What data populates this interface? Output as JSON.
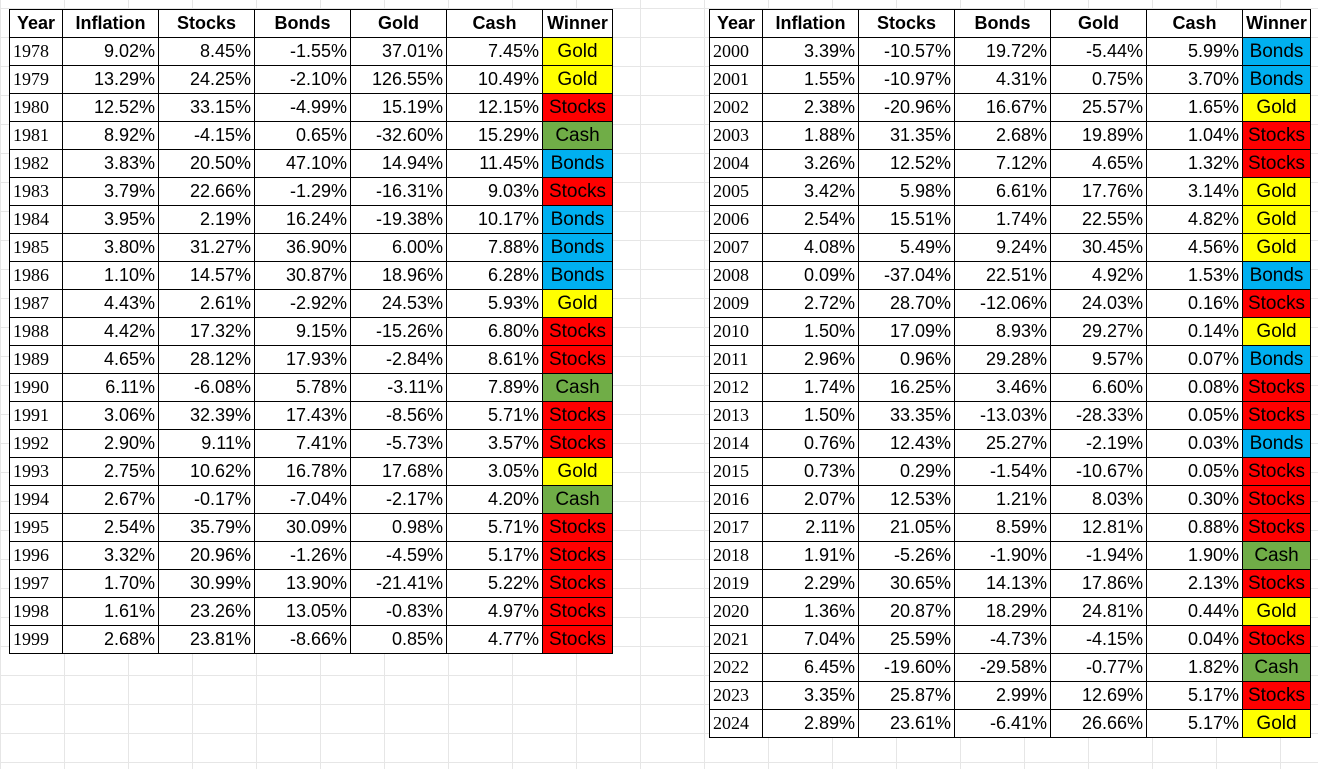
{
  "headers": [
    "Year",
    "Inflation",
    "Stocks",
    "Bonds",
    "Gold",
    "Cash",
    "Winner"
  ],
  "colors": {
    "Gold": "#ffff00",
    "Stocks": "#ff0000",
    "Bonds": "#00b0f0",
    "Cash": "#70ad47"
  },
  "left_table": [
    [
      "1978",
      "9.02%",
      "8.45%",
      "-1.55%",
      "37.01%",
      "7.45%",
      "Gold"
    ],
    [
      "1979",
      "13.29%",
      "24.25%",
      "-2.10%",
      "126.55%",
      "10.49%",
      "Gold"
    ],
    [
      "1980",
      "12.52%",
      "33.15%",
      "-4.99%",
      "15.19%",
      "12.15%",
      "Stocks"
    ],
    [
      "1981",
      "8.92%",
      "-4.15%",
      "0.65%",
      "-32.60%",
      "15.29%",
      "Cash"
    ],
    [
      "1982",
      "3.83%",
      "20.50%",
      "47.10%",
      "14.94%",
      "11.45%",
      "Bonds"
    ],
    [
      "1983",
      "3.79%",
      "22.66%",
      "-1.29%",
      "-16.31%",
      "9.03%",
      "Stocks"
    ],
    [
      "1984",
      "3.95%",
      "2.19%",
      "16.24%",
      "-19.38%",
      "10.17%",
      "Bonds"
    ],
    [
      "1985",
      "3.80%",
      "31.27%",
      "36.90%",
      "6.00%",
      "7.88%",
      "Bonds"
    ],
    [
      "1986",
      "1.10%",
      "14.57%",
      "30.87%",
      "18.96%",
      "6.28%",
      "Bonds"
    ],
    [
      "1987",
      "4.43%",
      "2.61%",
      "-2.92%",
      "24.53%",
      "5.93%",
      "Gold"
    ],
    [
      "1988",
      "4.42%",
      "17.32%",
      "9.15%",
      "-15.26%",
      "6.80%",
      "Stocks"
    ],
    [
      "1989",
      "4.65%",
      "28.12%",
      "17.93%",
      "-2.84%",
      "8.61%",
      "Stocks"
    ],
    [
      "1990",
      "6.11%",
      "-6.08%",
      "5.78%",
      "-3.11%",
      "7.89%",
      "Cash"
    ],
    [
      "1991",
      "3.06%",
      "32.39%",
      "17.43%",
      "-8.56%",
      "5.71%",
      "Stocks"
    ],
    [
      "1992",
      "2.90%",
      "9.11%",
      "7.41%",
      "-5.73%",
      "3.57%",
      "Stocks"
    ],
    [
      "1993",
      "2.75%",
      "10.62%",
      "16.78%",
      "17.68%",
      "3.05%",
      "Gold"
    ],
    [
      "1994",
      "2.67%",
      "-0.17%",
      "-7.04%",
      "-2.17%",
      "4.20%",
      "Cash"
    ],
    [
      "1995",
      "2.54%",
      "35.79%",
      "30.09%",
      "0.98%",
      "5.71%",
      "Stocks"
    ],
    [
      "1996",
      "3.32%",
      "20.96%",
      "-1.26%",
      "-4.59%",
      "5.17%",
      "Stocks"
    ],
    [
      "1997",
      "1.70%",
      "30.99%",
      "13.90%",
      "-21.41%",
      "5.22%",
      "Stocks"
    ],
    [
      "1998",
      "1.61%",
      "23.26%",
      "13.05%",
      "-0.83%",
      "4.97%",
      "Stocks"
    ],
    [
      "1999",
      "2.68%",
      "23.81%",
      "-8.66%",
      "0.85%",
      "4.77%",
      "Stocks"
    ]
  ],
  "right_table": [
    [
      "2000",
      "3.39%",
      "-10.57%",
      "19.72%",
      "-5.44%",
      "5.99%",
      "Bonds"
    ],
    [
      "2001",
      "1.55%",
      "-10.97%",
      "4.31%",
      "0.75%",
      "3.70%",
      "Bonds"
    ],
    [
      "2002",
      "2.38%",
      "-20.96%",
      "16.67%",
      "25.57%",
      "1.65%",
      "Gold"
    ],
    [
      "2003",
      "1.88%",
      "31.35%",
      "2.68%",
      "19.89%",
      "1.04%",
      "Stocks"
    ],
    [
      "2004",
      "3.26%",
      "12.52%",
      "7.12%",
      "4.65%",
      "1.32%",
      "Stocks"
    ],
    [
      "2005",
      "3.42%",
      "5.98%",
      "6.61%",
      "17.76%",
      "3.14%",
      "Gold"
    ],
    [
      "2006",
      "2.54%",
      "15.51%",
      "1.74%",
      "22.55%",
      "4.82%",
      "Gold"
    ],
    [
      "2007",
      "4.08%",
      "5.49%",
      "9.24%",
      "30.45%",
      "4.56%",
      "Gold"
    ],
    [
      "2008",
      "0.09%",
      "-37.04%",
      "22.51%",
      "4.92%",
      "1.53%",
      "Bonds"
    ],
    [
      "2009",
      "2.72%",
      "28.70%",
      "-12.06%",
      "24.03%",
      "0.16%",
      "Stocks"
    ],
    [
      "2010",
      "1.50%",
      "17.09%",
      "8.93%",
      "29.27%",
      "0.14%",
      "Gold"
    ],
    [
      "2011",
      "2.96%",
      "0.96%",
      "29.28%",
      "9.57%",
      "0.07%",
      "Bonds"
    ],
    [
      "2012",
      "1.74%",
      "16.25%",
      "3.46%",
      "6.60%",
      "0.08%",
      "Stocks"
    ],
    [
      "2013",
      "1.50%",
      "33.35%",
      "-13.03%",
      "-28.33%",
      "0.05%",
      "Stocks"
    ],
    [
      "2014",
      "0.76%",
      "12.43%",
      "25.27%",
      "-2.19%",
      "0.03%",
      "Bonds"
    ],
    [
      "2015",
      "0.73%",
      "0.29%",
      "-1.54%",
      "-10.67%",
      "0.05%",
      "Stocks"
    ],
    [
      "2016",
      "2.07%",
      "12.53%",
      "1.21%",
      "8.03%",
      "0.30%",
      "Stocks"
    ],
    [
      "2017",
      "2.11%",
      "21.05%",
      "8.59%",
      "12.81%",
      "0.88%",
      "Stocks"
    ],
    [
      "2018",
      "1.91%",
      "-5.26%",
      "-1.90%",
      "-1.94%",
      "1.90%",
      "Cash"
    ],
    [
      "2019",
      "2.29%",
      "30.65%",
      "14.13%",
      "17.86%",
      "2.13%",
      "Stocks"
    ],
    [
      "2020",
      "1.36%",
      "20.87%",
      "18.29%",
      "24.81%",
      "0.44%",
      "Gold"
    ],
    [
      "2021",
      "7.04%",
      "25.59%",
      "-4.73%",
      "-4.15%",
      "0.04%",
      "Stocks"
    ],
    [
      "2022",
      "6.45%",
      "-19.60%",
      "-29.58%",
      "-0.77%",
      "1.82%",
      "Cash"
    ],
    [
      "2023",
      "3.35%",
      "25.87%",
      "2.99%",
      "12.69%",
      "5.17%",
      "Stocks"
    ],
    [
      "2024",
      "2.89%",
      "23.61%",
      "-6.41%",
      "26.66%",
      "5.17%",
      "Gold"
    ]
  ]
}
